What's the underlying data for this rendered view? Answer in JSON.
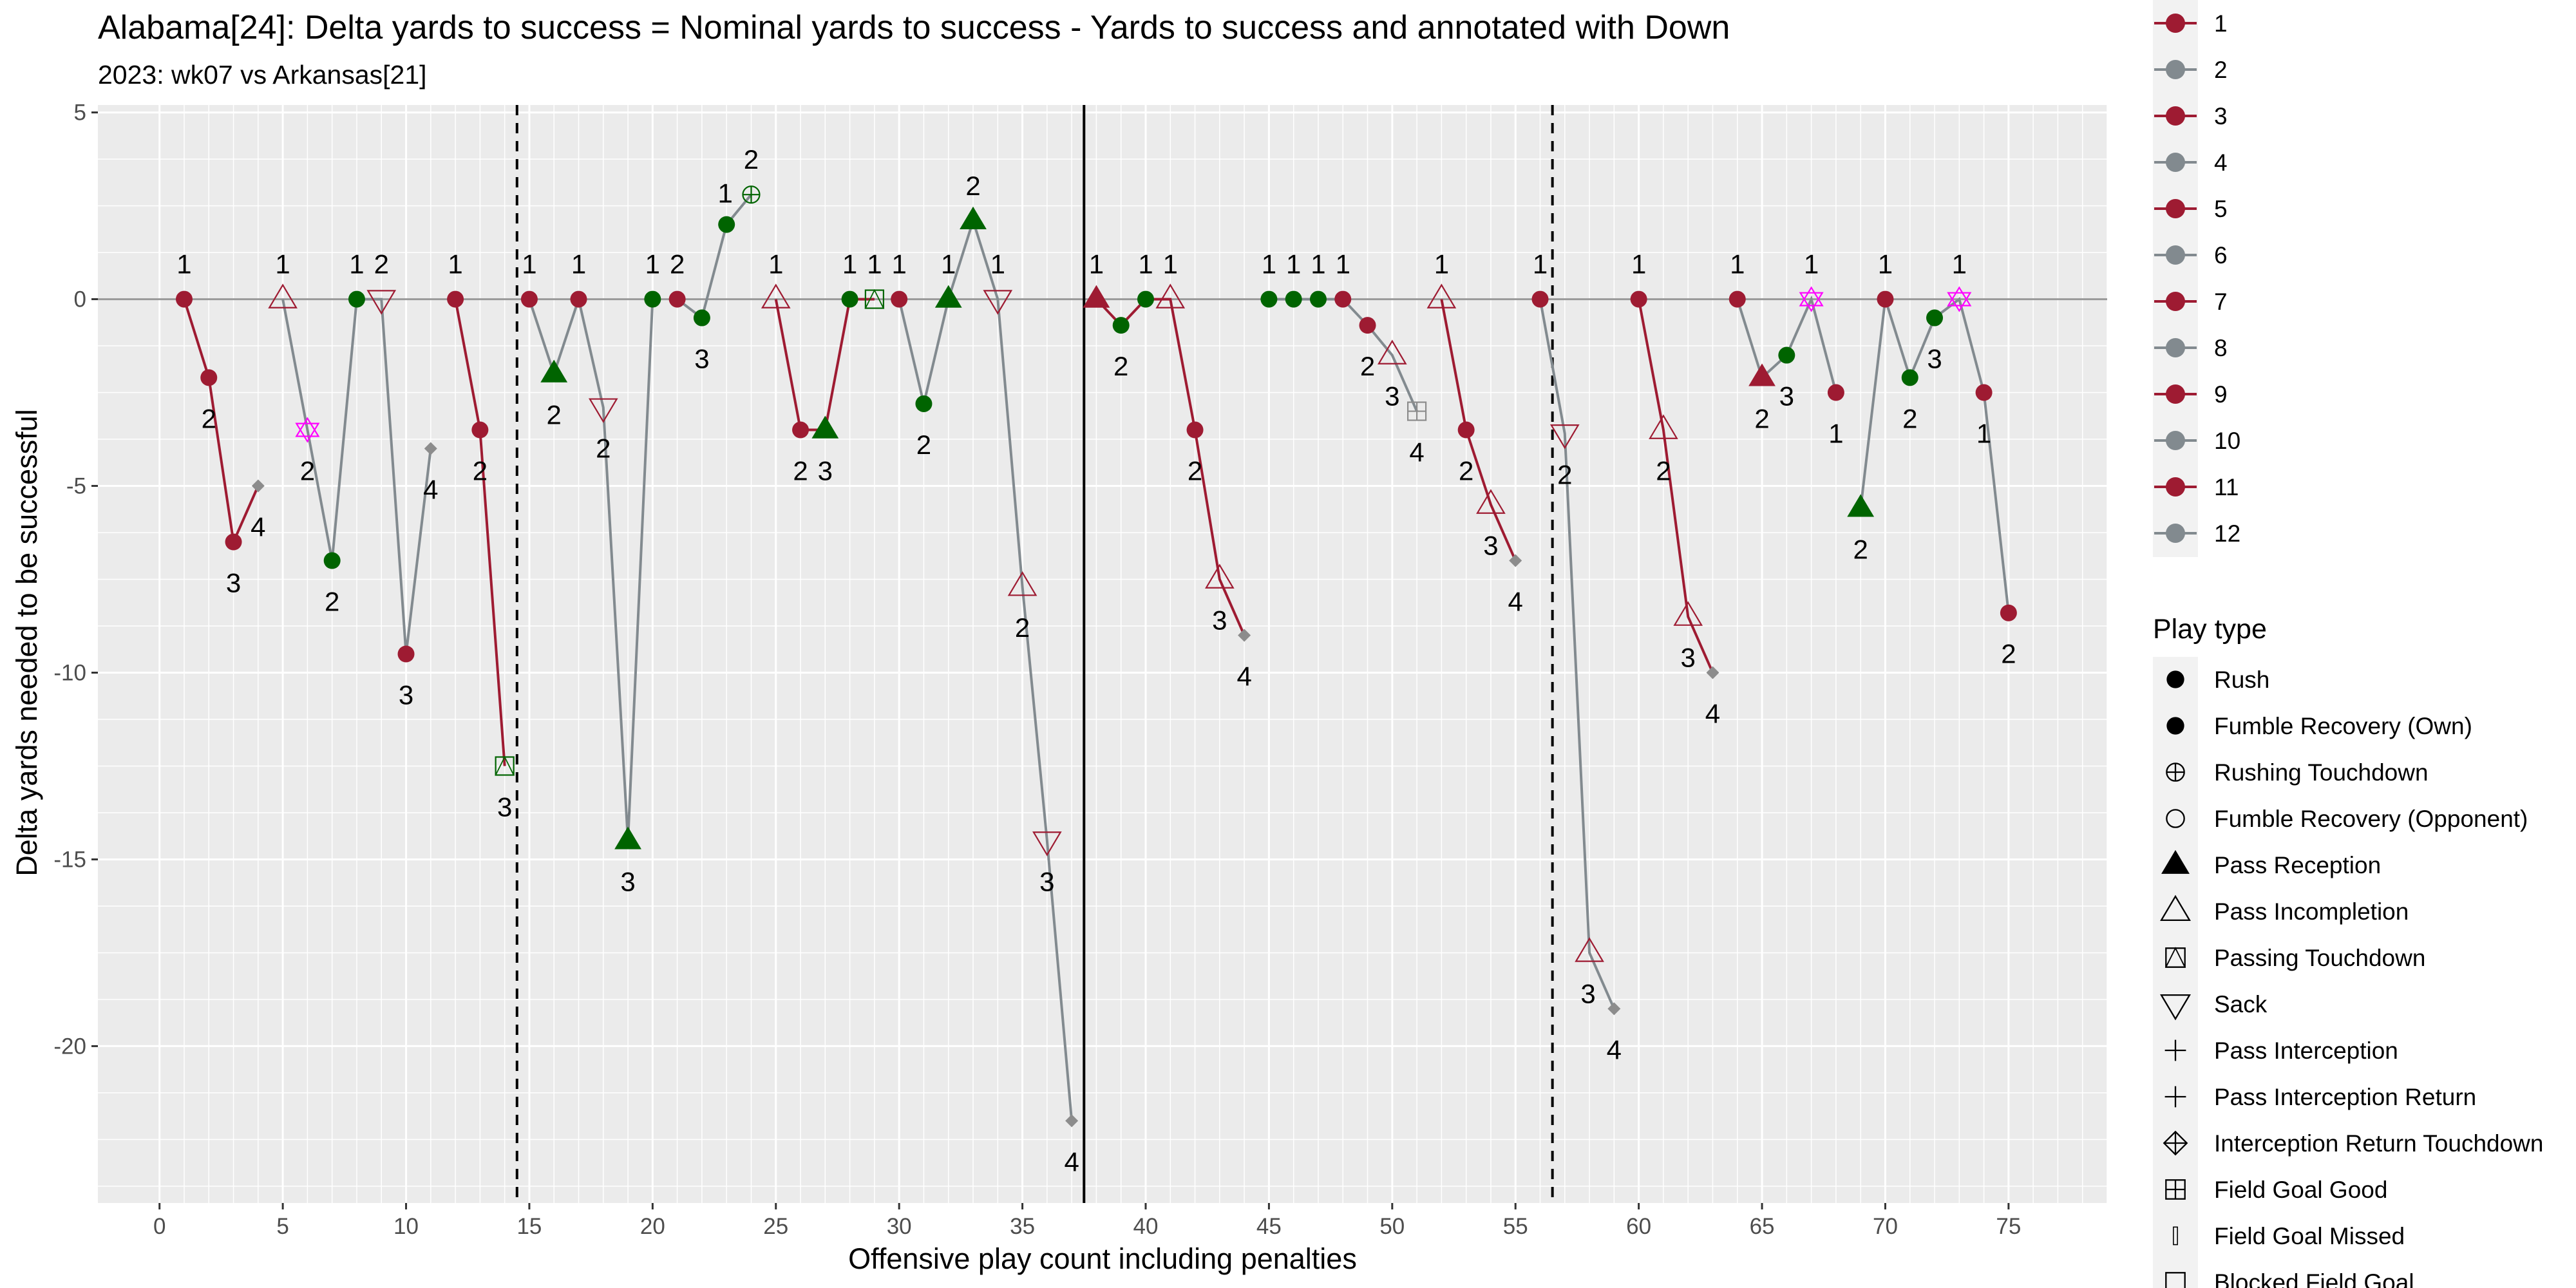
{
  "chart_data": {
    "type": "line",
    "title": "Alabama[24]: Delta yards to success = Nominal yards to success - Yards to success and annotated with Down",
    "subtitle": "2023: wk07 vs Arkansas[21]",
    "xlabel": "Offensive play count including penalties",
    "ylabel": "Delta yards needed to be successful",
    "xlim": [
      -2.5,
      79
    ],
    "ylim": [
      -24.2,
      5.2
    ],
    "x_ticks": [
      0,
      5,
      10,
      15,
      20,
      25,
      30,
      35,
      40,
      45,
      50,
      55,
      60,
      65,
      70,
      75
    ],
    "y_ticks": [
      5,
      0,
      -5,
      -10,
      -15,
      -20
    ],
    "y_tick_labels": [
      "5",
      "0",
      "-5",
      "-10",
      "-15",
      "-20"
    ],
    "grid": true,
    "reference_lines": [
      {
        "x": 14.5,
        "style": "dashed"
      },
      {
        "x": 37.5,
        "style": "solid"
      },
      {
        "x": 56.5,
        "style": "dashed"
      }
    ],
    "colors": {
      "alabama": "#9e1b32",
      "grey": "#828a8f",
      "green": "#006400",
      "magenta": "#ff00ff",
      "grey_marker": "#8c8c8c",
      "panel": "#ebebeb",
      "grid": "#ffffff"
    },
    "plays": [
      {
        "x": 1,
        "y": 0,
        "down": "1",
        "type": "rush",
        "c": "alabama",
        "lp": "above"
      },
      {
        "x": 2,
        "y": -2.1,
        "down": "2",
        "type": "rush",
        "c": "alabama",
        "lp": "below"
      },
      {
        "x": 3,
        "y": -6.5,
        "down": "3",
        "type": "rush",
        "c": "alabama",
        "lp": "below"
      },
      {
        "x": 4,
        "y": -5,
        "down": "4",
        "type": "punt",
        "c": "grey_marker",
        "lp": "below"
      },
      {
        "x": 5,
        "y": 0,
        "down": "1",
        "type": "pass_incompletion",
        "c": "alabama",
        "lp": "above"
      },
      {
        "x": 6,
        "y": -3.5,
        "down": "2",
        "type": "penalty_star",
        "c": "magenta",
        "lp": "below"
      },
      {
        "x": 7,
        "y": -7,
        "down": "2",
        "type": "rush",
        "c": "green",
        "lp": "below"
      },
      {
        "x": 8,
        "y": 0,
        "down": "1",
        "type": "rush",
        "c": "green",
        "lp": "above"
      },
      {
        "x": 9,
        "y": 0,
        "down": "2",
        "type": "sack",
        "c": "alabama",
        "lp": "above"
      },
      {
        "x": 10,
        "y": -9.5,
        "down": "3",
        "type": "rush",
        "c": "alabama",
        "lp": "below"
      },
      {
        "x": 11,
        "y": -4,
        "down": "4",
        "type": "punt",
        "c": "grey_marker",
        "lp": "below"
      },
      {
        "x": 12,
        "y": 0,
        "down": "1",
        "type": "rush",
        "c": "alabama",
        "lp": "above"
      },
      {
        "x": 13,
        "y": -3.5,
        "down": "2",
        "type": "rush",
        "c": "alabama",
        "lp": "below"
      },
      {
        "x": 14,
        "y": -12.5,
        "down": "3",
        "type": "passing_touchdown",
        "c": "green",
        "lp": "below"
      },
      {
        "x": 15,
        "y": 0,
        "down": "1",
        "type": "rush",
        "c": "alabama",
        "lp": "above"
      },
      {
        "x": 16,
        "y": -2,
        "down": "2",
        "type": "pass_reception",
        "c": "green",
        "lp": "below"
      },
      {
        "x": 17,
        "y": 0,
        "down": "1",
        "type": "rush",
        "c": "alabama",
        "lp": "above"
      },
      {
        "x": 18,
        "y": -2.9,
        "down": "2",
        "type": "sack",
        "c": "alabama",
        "lp": "below"
      },
      {
        "x": 19,
        "y": -14.5,
        "down": "3",
        "type": "pass_reception",
        "c": "green",
        "lp": "below"
      },
      {
        "x": 20,
        "y": 0,
        "down": "1",
        "type": "rush",
        "c": "green",
        "lp": "above"
      },
      {
        "x": 21,
        "y": 0,
        "down": "2",
        "type": "rush",
        "c": "alabama",
        "lp": "above"
      },
      {
        "x": 22,
        "y": -0.5,
        "down": "3",
        "type": "rush",
        "c": "green",
        "lp": "below"
      },
      {
        "x": 23,
        "y": 2,
        "down": "1",
        "type": "rush",
        "c": "green",
        "lp": "aboveleft"
      },
      {
        "x": 24,
        "y": 2.8,
        "down": "2",
        "type": "rushing_touchdown",
        "c": "green",
        "lp": "above"
      },
      {
        "x": 25,
        "y": 0,
        "down": "1",
        "type": "pass_incompletion",
        "c": "alabama",
        "lp": "above"
      },
      {
        "x": 26,
        "y": -3.5,
        "down": "2",
        "type": "rush",
        "c": "alabama",
        "lp": "below"
      },
      {
        "x": 27,
        "y": -3.5,
        "down": "3",
        "type": "pass_reception",
        "c": "green",
        "lp": "below"
      },
      {
        "x": 28,
        "y": 0,
        "down": "1",
        "type": "rush",
        "c": "green",
        "lp": "above"
      },
      {
        "x": 29,
        "y": 0,
        "down": "1",
        "type": "passing_touchdown",
        "c": "green",
        "lp": "above"
      },
      {
        "x": 30,
        "y": 0,
        "down": "1",
        "type": "rush",
        "c": "alabama",
        "lp": "above"
      },
      {
        "x": 31,
        "y": -2.8,
        "down": "2",
        "type": "rush",
        "c": "green",
        "lp": "below"
      },
      {
        "x": 32,
        "y": 0,
        "down": "1",
        "type": "pass_reception",
        "c": "green",
        "lp": "above"
      },
      {
        "x": 33,
        "y": 2.1,
        "down": "2",
        "type": "pass_reception",
        "c": "green",
        "lp": "above"
      },
      {
        "x": 34,
        "y": 0,
        "down": "1",
        "type": "sack",
        "c": "alabama",
        "lp": "above"
      },
      {
        "x": 35,
        "y": -7.7,
        "down": "2",
        "type": "pass_incompletion",
        "c": "alabama",
        "lp": "below"
      },
      {
        "x": 36,
        "y": -14.5,
        "down": "3",
        "type": "sack",
        "c": "alabama",
        "lp": "below"
      },
      {
        "x": 37,
        "y": -22,
        "down": "4",
        "type": "punt",
        "c": "grey_marker",
        "lp": "below"
      },
      {
        "x": 38,
        "y": 0,
        "down": "1",
        "type": "pass_reception",
        "c": "alabama",
        "lp": "above"
      },
      {
        "x": 39,
        "y": -0.7,
        "down": "2",
        "type": "rush",
        "c": "green",
        "lp": "below"
      },
      {
        "x": 40,
        "y": 0,
        "down": "1",
        "type": "rush",
        "c": "green",
        "lp": "above"
      },
      {
        "x": 41,
        "y": 0,
        "down": "1",
        "type": "pass_incompletion",
        "c": "alabama",
        "lp": "above"
      },
      {
        "x": 42,
        "y": -3.5,
        "down": "2",
        "type": "rush",
        "c": "alabama",
        "lp": "below"
      },
      {
        "x": 43,
        "y": -7.5,
        "down": "3",
        "type": "pass_incompletion",
        "c": "alabama",
        "lp": "below"
      },
      {
        "x": 44,
        "y": -9,
        "down": "4",
        "type": "punt",
        "c": "grey_marker",
        "lp": "below"
      },
      {
        "x": 45,
        "y": 0,
        "down": "1",
        "type": "rush",
        "c": "green",
        "lp": "above"
      },
      {
        "x": 46,
        "y": 0,
        "down": "1",
        "type": "rush",
        "c": "green",
        "lp": "above"
      },
      {
        "x": 47,
        "y": 0,
        "down": "1",
        "type": "rush",
        "c": "green",
        "lp": "above"
      },
      {
        "x": 48,
        "y": 0,
        "down": "1",
        "type": "rush",
        "c": "alabama",
        "lp": "above"
      },
      {
        "x": 49,
        "y": -0.7,
        "down": "2",
        "type": "rush",
        "c": "alabama",
        "lp": "below"
      },
      {
        "x": 50,
        "y": -1.5,
        "down": "3",
        "type": "pass_incompletion",
        "c": "alabama",
        "lp": "below"
      },
      {
        "x": 51,
        "y": -3,
        "down": "4",
        "type": "field_goal_good",
        "c": "grey_marker",
        "lp": "below"
      },
      {
        "x": 52,
        "y": 0,
        "down": "1",
        "type": "pass_incompletion",
        "c": "alabama",
        "lp": "above"
      },
      {
        "x": 53,
        "y": -3.5,
        "down": "2",
        "type": "rush",
        "c": "alabama",
        "lp": "below"
      },
      {
        "x": 54,
        "y": -5.5,
        "down": "3",
        "type": "pass_incompletion",
        "c": "alabama",
        "lp": "below"
      },
      {
        "x": 55,
        "y": -7,
        "down": "4",
        "type": "punt",
        "c": "grey_marker",
        "lp": "below"
      },
      {
        "x": 56,
        "y": 0,
        "down": "1",
        "type": "rush",
        "c": "alabama",
        "lp": "above"
      },
      {
        "x": 57,
        "y": -3.6,
        "down": "2",
        "type": "sack",
        "c": "alabama",
        "lp": "below"
      },
      {
        "x": 58,
        "y": -17.5,
        "down": "3",
        "type": "pass_incompletion",
        "c": "alabama",
        "lp": "belowleft"
      },
      {
        "x": 59,
        "y": -19,
        "down": "4",
        "type": "punt",
        "c": "grey_marker",
        "lp": "below"
      },
      {
        "x": 60,
        "y": 0,
        "down": "1",
        "type": "rush",
        "c": "alabama",
        "lp": "above"
      },
      {
        "x": 61,
        "y": -3.5,
        "down": "2",
        "type": "pass_incompletion",
        "c": "alabama",
        "lp": "below"
      },
      {
        "x": 62,
        "y": -8.5,
        "down": "3",
        "type": "pass_incompletion",
        "c": "alabama",
        "lp": "below"
      },
      {
        "x": 63,
        "y": -10,
        "down": "4",
        "type": "punt",
        "c": "grey_marker",
        "lp": "below"
      },
      {
        "x": 64,
        "y": 0,
        "down": "1",
        "type": "rush",
        "c": "alabama",
        "lp": "above"
      },
      {
        "x": 65,
        "y": -2.1,
        "down": "2",
        "type": "pass_reception",
        "c": "alabama",
        "lp": "below"
      },
      {
        "x": 66,
        "y": -1.5,
        "down": "3",
        "type": "rush",
        "c": "green",
        "lp": "below"
      },
      {
        "x": 67,
        "y": 0,
        "down": "1",
        "type": "penalty_star",
        "c": "magenta",
        "lp": "above"
      },
      {
        "x": 68,
        "y": -2.5,
        "down": "1",
        "type": "rush",
        "c": "alabama",
        "lp": "below"
      },
      {
        "x": 69,
        "y": -5.6,
        "down": "2",
        "type": "pass_reception",
        "c": "green",
        "lp": "below"
      },
      {
        "x": 70,
        "y": 0,
        "down": "1",
        "type": "rush",
        "c": "alabama",
        "lp": "above"
      },
      {
        "x": 71,
        "y": -2.1,
        "down": "2",
        "type": "rush",
        "c": "green",
        "lp": "below"
      },
      {
        "x": 72,
        "y": -0.5,
        "down": "3",
        "type": "rush",
        "c": "green",
        "lp": "below"
      },
      {
        "x": 73,
        "y": 0,
        "down": "1",
        "type": "penalty_star",
        "c": "magenta",
        "lp": "above"
      },
      {
        "x": 74,
        "y": -2.5,
        "down": "1",
        "type": "rush",
        "c": "alabama",
        "lp": "below"
      },
      {
        "x": 75,
        "y": -8.4,
        "down": "2",
        "type": "rush",
        "c": "alabama",
        "lp": "below"
      }
    ],
    "segments": [
      {
        "from": 1,
        "to": 4,
        "c": "alabama"
      },
      {
        "from": 5,
        "to": 11,
        "c": "grey"
      },
      {
        "from": 12,
        "to": 14,
        "c": "alabama"
      },
      {
        "from": 15,
        "to": 20,
        "c": "grey"
      },
      {
        "from": 21,
        "to": 24,
        "c": "grey"
      },
      {
        "from": 25,
        "to": 29,
        "c": "alabama"
      },
      {
        "from": 30,
        "to": 37,
        "c": "grey"
      },
      {
        "from": 38,
        "to": 44,
        "c": "alabama"
      },
      {
        "from": 45,
        "to": 51,
        "c": "grey"
      },
      {
        "from": 52,
        "to": 55,
        "c": "alabama"
      },
      {
        "from": 56,
        "to": 59,
        "c": "grey"
      },
      {
        "from": 60,
        "to": 63,
        "c": "alabama"
      },
      {
        "from": 64,
        "to": 68,
        "c": "grey"
      },
      {
        "from": 69,
        "to": 75,
        "c": "grey"
      }
    ],
    "drive_legend": {
      "entries": [
        {
          "label": "1",
          "c": "alabama"
        },
        {
          "label": "2",
          "c": "grey"
        },
        {
          "label": "3",
          "c": "alabama"
        },
        {
          "label": "4",
          "c": "grey"
        },
        {
          "label": "5",
          "c": "alabama"
        },
        {
          "label": "6",
          "c": "grey"
        },
        {
          "label": "7",
          "c": "alabama"
        },
        {
          "label": "8",
          "c": "grey"
        },
        {
          "label": "9",
          "c": "alabama"
        },
        {
          "label": "10",
          "c": "grey"
        },
        {
          "label": "11",
          "c": "alabama"
        },
        {
          "label": "12",
          "c": "grey"
        }
      ]
    },
    "play_type_legend": {
      "title": "Play type",
      "entries": [
        {
          "label": "Rush",
          "shape": "rush"
        },
        {
          "label": "Fumble Recovery (Own)",
          "shape": "rush"
        },
        {
          "label": "Rushing Touchdown",
          "shape": "rushing_touchdown"
        },
        {
          "label": "Fumble Recovery (Opponent)",
          "shape": "circle_open"
        },
        {
          "label": "Pass Reception",
          "shape": "pass_reception"
        },
        {
          "label": "Pass Incompletion",
          "shape": "pass_incompletion"
        },
        {
          "label": "Passing Touchdown",
          "shape": "passing_touchdown"
        },
        {
          "label": "Sack",
          "shape": "sack"
        },
        {
          "label": "Pass Interception",
          "shape": "plus"
        },
        {
          "label": "Pass Interception Return",
          "shape": "plus"
        },
        {
          "label": "Interception Return Touchdown",
          "shape": "diamond_plus"
        },
        {
          "label": "Field Goal Good",
          "shape": "field_goal_good"
        },
        {
          "label": "Field Goal Missed",
          "shape": "bar"
        },
        {
          "label": "Blocked Field Goal",
          "shape": "square_open"
        }
      ]
    }
  }
}
